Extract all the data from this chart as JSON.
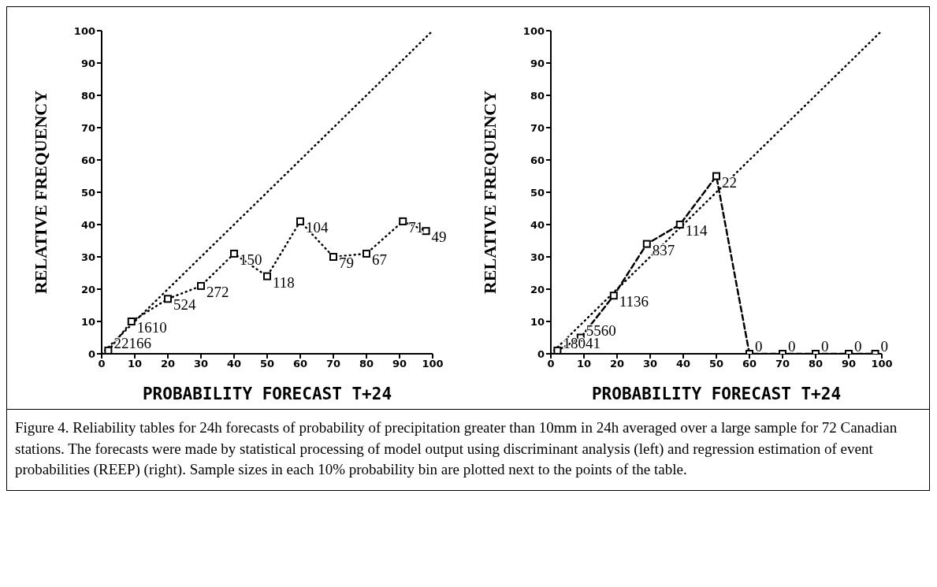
{
  "chart_data": [
    {
      "type": "line",
      "xlabel": "PROBABILITY FORECAST T+24",
      "ylabel": "RELATIVE FREQUENCY",
      "xlim": [
        0,
        100
      ],
      "ylim": [
        0,
        100
      ],
      "xticks": [
        0,
        10,
        20,
        30,
        40,
        50,
        60,
        70,
        80,
        90,
        100
      ],
      "yticks": [
        0,
        10,
        20,
        30,
        40,
        50,
        60,
        70,
        80,
        90,
        100
      ],
      "grid": false,
      "legend": false,
      "series": [
        {
          "type": "line",
          "color": "#000000",
          "x": [
            0,
            100
          ],
          "values": [
            0,
            100
          ],
          "line_style": "dotted",
          "marker": "none"
        },
        {
          "type": "line",
          "color": "#000000",
          "x": [
            2,
            9,
            20,
            30,
            40,
            50,
            60,
            70,
            80,
            91,
            98
          ],
          "values": [
            1,
            10,
            17,
            21,
            31,
            24,
            41,
            30,
            31,
            41,
            38
          ],
          "line_style": "dotted",
          "marker": "square"
        }
      ],
      "annotations": [
        {
          "text": "22166",
          "x": 2,
          "y": 1
        },
        {
          "text": "1610",
          "x": 9,
          "y": 10
        },
        {
          "text": "524",
          "x": 20,
          "y": 17
        },
        {
          "text": "272",
          "x": 30,
          "y": 21
        },
        {
          "text": "150",
          "x": 40,
          "y": 31
        },
        {
          "text": "118",
          "x": 50,
          "y": 24
        },
        {
          "text": "104",
          "x": 60,
          "y": 41
        },
        {
          "text": "79",
          "x": 70,
          "y": 30
        },
        {
          "text": "67",
          "x": 80,
          "y": 31
        },
        {
          "text": "71",
          "x": 91,
          "y": 41
        },
        {
          "text": "49",
          "x": 98,
          "y": 38
        }
      ]
    },
    {
      "type": "line",
      "xlabel": "PROBABILITY FORECAST T+24",
      "ylabel": "RELATIVE FREQUENCY",
      "xlim": [
        0,
        100
      ],
      "ylim": [
        0,
        100
      ],
      "xticks": [
        0,
        10,
        20,
        30,
        40,
        50,
        60,
        70,
        80,
        90,
        100
      ],
      "yticks": [
        0,
        10,
        20,
        30,
        40,
        50,
        60,
        70,
        80,
        90,
        100
      ],
      "grid": false,
      "legend": false,
      "series": [
        {
          "type": "line",
          "color": "#000000",
          "x": [
            0,
            100
          ],
          "values": [
            0,
            100
          ],
          "line_style": "dotted",
          "marker": "none"
        },
        {
          "type": "line",
          "color": "#000000",
          "x": [
            2,
            9,
            19,
            29,
            39,
            50,
            60,
            70,
            80,
            90,
            98
          ],
          "values": [
            1,
            5,
            18,
            34,
            40,
            55,
            0,
            0,
            0,
            0,
            0
          ],
          "line_style": "dashed",
          "marker": "square"
        }
      ],
      "annotations": [
        {
          "text": "18041",
          "x": 2,
          "y": 1
        },
        {
          "text": "5560",
          "x": 9,
          "y": 5
        },
        {
          "text": "1136",
          "x": 19,
          "y": 18
        },
        {
          "text": "837",
          "x": 29,
          "y": 34
        },
        {
          "text": "114",
          "x": 39,
          "y": 40
        },
        {
          "text": "22",
          "x": 50,
          "y": 55
        },
        {
          "text": "0",
          "x": 60,
          "y": 0
        },
        {
          "text": "0",
          "x": 70,
          "y": 0
        },
        {
          "text": "0",
          "x": 80,
          "y": 0
        },
        {
          "text": "0",
          "x": 90,
          "y": 0
        },
        {
          "text": "0",
          "x": 98,
          "y": 0
        },
        "Figure 4.  Reliability tables for 24h forecasts of probability of precipitation greater than 10mm in 24h averaged over a large sample for 72 Canadian stations.  The forecasts were made by statistical processing of model output using discriminant analysis (left) and regression estimation of event probabilities (REEP) (right).  Sample sizes in each 10% probability bin are plotted next to the points of the table."
      ]
    }
  ]
}
